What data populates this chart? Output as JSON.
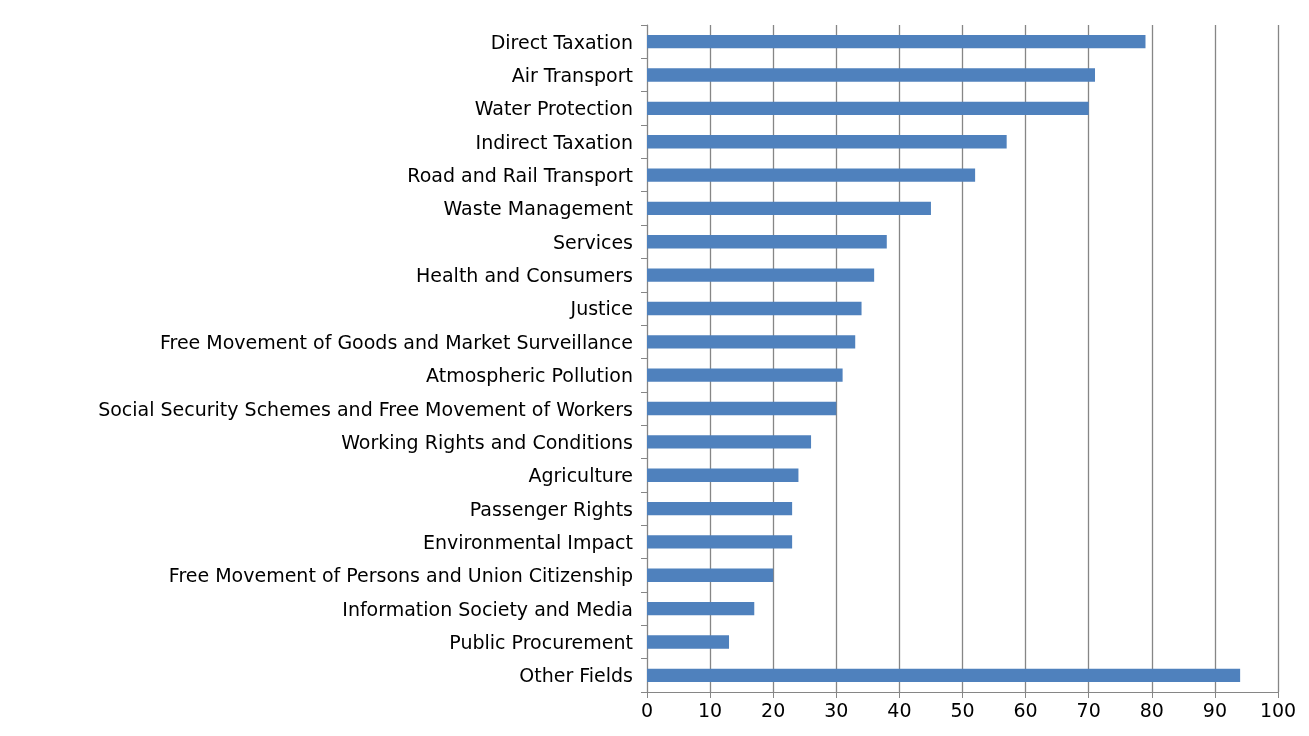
{
  "chart_data": {
    "type": "bar",
    "orientation": "horizontal",
    "categories": [
      "Direct Taxation",
      "Air Transport",
      "Water Protection",
      "Indirect Taxation",
      "Road and Rail Transport",
      "Waste Management",
      "Services",
      "Health and Consumers",
      "Justice",
      "Free Movement of Goods and Market Surveillance",
      "Atmospheric Pollution",
      "Social Security Schemes and Free Movement of Workers",
      "Working Rights and Conditions",
      "Agriculture",
      "Passenger Rights",
      "Environmental Impact",
      "Free Movement of Persons and Union Citizenship",
      "Information Society and Media",
      "Public Procurement",
      "Other Fields"
    ],
    "values": [
      79,
      71,
      70,
      57,
      52,
      45,
      38,
      36,
      34,
      33,
      31,
      30,
      26,
      24,
      23,
      23,
      20,
      17,
      13,
      94
    ],
    "color": "#4f81bd",
    "xlim": [
      0,
      100
    ],
    "xticks": [
      0,
      10,
      20,
      30,
      40,
      50,
      60,
      70,
      80,
      90,
      100
    ],
    "grid": "x"
  }
}
